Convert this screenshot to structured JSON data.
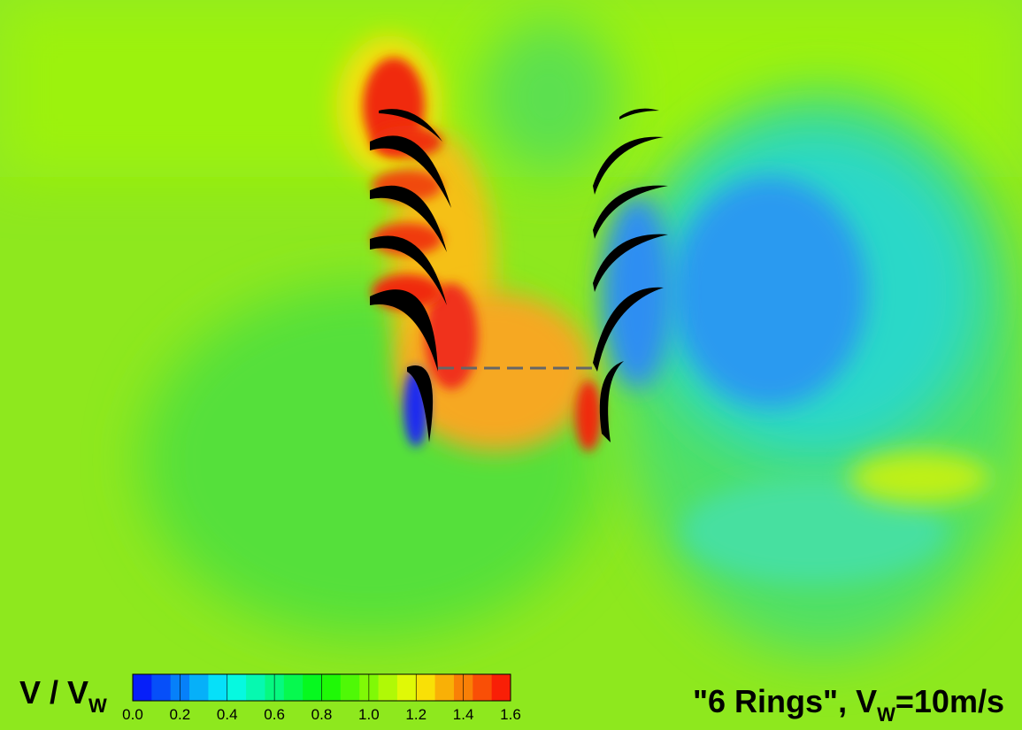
{
  "colorbar": {
    "label": "V / V",
    "label_sub": "W",
    "ticks": [
      "0.0",
      "0.2",
      "0.4",
      "0.6",
      "0.8",
      "1.0",
      "1.2",
      "1.4",
      "1.6"
    ]
  },
  "annotation": {
    "prefix": "\"6 Rings\", V",
    "sub": "W",
    "suffix": "=10m/s"
  }
}
